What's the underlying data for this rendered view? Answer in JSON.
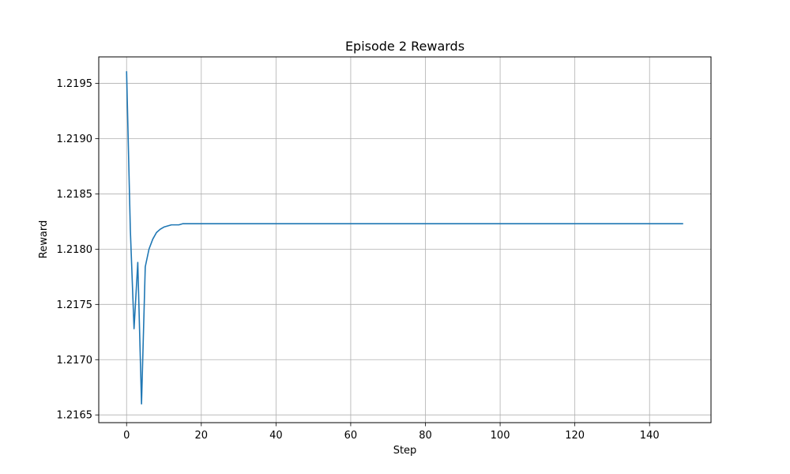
{
  "chart_data": {
    "type": "line",
    "title": "Episode 2 Rewards",
    "xlabel": "Step",
    "ylabel": "Reward",
    "xlim": [
      -7.45,
      156.45
    ],
    "ylim": [
      1.21643,
      1.21974
    ],
    "xticks": [
      0,
      20,
      40,
      60,
      80,
      100,
      120,
      140
    ],
    "xtick_labels": [
      "0",
      "20",
      "40",
      "60",
      "80",
      "100",
      "120",
      "140"
    ],
    "yticks": [
      1.2165,
      1.217,
      1.2175,
      1.218,
      1.2185,
      1.219,
      1.2195
    ],
    "ytick_labels": [
      "1.2165",
      "1.2170",
      "1.2175",
      "1.2180",
      "1.2185",
      "1.2190",
      "1.2195"
    ],
    "grid": true,
    "series": [
      {
        "color": "#1f77b4",
        "head_x": [
          0,
          1,
          2,
          3,
          4,
          5,
          6,
          7,
          8,
          9,
          10,
          11,
          12,
          13,
          14,
          15,
          16,
          17,
          18,
          19,
          20
        ],
        "head_y": [
          1.21961,
          1.21818,
          1.21728,
          1.21788,
          1.2166,
          1.21784,
          1.218,
          1.21809,
          1.21815,
          1.21818,
          1.2182,
          1.21821,
          1.21822,
          1.21822,
          1.21822,
          1.21823,
          1.21823,
          1.21823,
          1.21823,
          1.21823,
          1.21823
        ],
        "tail_start": 21,
        "tail_end": 149,
        "tail_value": 1.21823
      }
    ]
  }
}
